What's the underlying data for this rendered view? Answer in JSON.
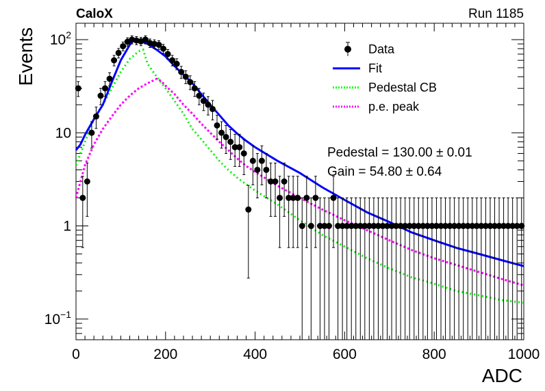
{
  "header": {
    "experiment": "CaloX",
    "run": "Run 1185"
  },
  "chart_data": {
    "type": "scatter",
    "xlabel": "ADC",
    "ylabel": "Events",
    "xlim": [
      0,
      1000
    ],
    "ylim": [
      0.06,
      150
    ],
    "yscale": "log",
    "x_ticks": [
      "0",
      "200",
      "400",
      "600",
      "800",
      "1000"
    ],
    "y_ticks": [
      {
        "value": 0.1,
        "base": "10",
        "exp": "−1"
      },
      {
        "value": 1,
        "label": "1"
      },
      {
        "value": 10,
        "label": "10"
      },
      {
        "value": 100,
        "base": "10",
        "exp": "2"
      }
    ],
    "legend": {
      "position": "top-right",
      "entries": [
        {
          "label": "Data",
          "style": "marker",
          "color": "#000000"
        },
        {
          "label": "Fit",
          "style": "solid",
          "color": "#0000ff"
        },
        {
          "label": "Pedestal CB",
          "style": "dotted",
          "color": "#00ff00"
        },
        {
          "label": "p.e. peak",
          "style": "dotted",
          "color": "#ff00ff"
        }
      ]
    },
    "annotations": [
      "Pedestal = 130.00 ± 0.01",
      "Gain = 54.80 ± 0.64"
    ],
    "series": [
      {
        "name": "Data",
        "type": "errorbar",
        "x": [
          5,
          15,
          25,
          35,
          45,
          55,
          65,
          75,
          85,
          95,
          105,
          115,
          125,
          135,
          145,
          155,
          165,
          175,
          185,
          195,
          205,
          215,
          225,
          235,
          245,
          255,
          265,
          275,
          285,
          295,
          305,
          315,
          325,
          335,
          345,
          355,
          365,
          375,
          385,
          395,
          405,
          415,
          425,
          435,
          445,
          455,
          465,
          475,
          485,
          495,
          505,
          515,
          525,
          535,
          545,
          555,
          565,
          575,
          585,
          595,
          605,
          615,
          625,
          635,
          645,
          655,
          665,
          675,
          685,
          695,
          705,
          715,
          725,
          735,
          745,
          755,
          765,
          775,
          785,
          795,
          805,
          815,
          825,
          835,
          845,
          855,
          865,
          875,
          885,
          895,
          905,
          915,
          925,
          935,
          945,
          955,
          965,
          975,
          985,
          995
        ],
        "y": [
          30,
          2,
          3,
          10,
          15,
          25,
          30,
          38,
          60,
          72,
          85,
          95,
          100,
          98,
          96,
          100,
          92,
          90,
          88,
          80,
          70,
          60,
          55,
          45,
          40,
          35,
          30,
          25,
          22,
          20,
          18,
          12,
          10,
          9,
          8,
          7,
          7,
          6,
          1.5,
          5,
          4,
          5,
          4,
          3,
          3,
          2,
          3,
          2,
          2,
          2,
          1,
          2,
          1,
          2,
          1,
          1,
          1,
          2,
          1,
          1,
          1,
          1,
          1,
          1,
          1,
          1,
          1,
          1,
          1,
          1,
          1,
          1,
          1,
          1,
          1,
          1,
          1,
          1,
          1,
          1,
          1,
          1,
          1,
          1,
          1,
          1,
          1,
          1,
          1,
          1,
          1,
          1,
          1,
          1,
          1,
          1,
          1,
          1,
          1,
          1
        ]
      },
      {
        "name": "Fit",
        "type": "line",
        "x": [
          0,
          10,
          20,
          40,
          60,
          80,
          100,
          120,
          130,
          140,
          160,
          180,
          200,
          220,
          240,
          260,
          280,
          300,
          320,
          340,
          360,
          380,
          400,
          450,
          500,
          550,
          600,
          650,
          700,
          750,
          800,
          850,
          900,
          950,
          1000
        ],
        "y": [
          6.5,
          7.5,
          9.5,
          14,
          20,
          35,
          60,
          88,
          100,
          98,
          90,
          78,
          66,
          52,
          42,
          34,
          26,
          20,
          15.5,
          12,
          9.8,
          8.2,
          7.0,
          5.0,
          3.7,
          2.6,
          1.9,
          1.4,
          1.1,
          0.85,
          0.7,
          0.58,
          0.5,
          0.43,
          0.37
        ]
      },
      {
        "name": "Pedestal CB",
        "type": "line",
        "x": [
          0,
          10,
          20,
          40,
          60,
          80,
          100,
          120,
          140,
          150,
          160,
          180,
          200,
          220,
          240,
          260,
          280,
          300,
          320,
          340,
          360,
          380,
          400,
          450,
          500,
          550,
          600,
          650,
          700,
          750,
          800,
          850,
          900,
          950,
          1000
        ],
        "y": [
          4.5,
          6,
          8,
          14,
          20,
          30,
          45,
          62,
          75,
          78,
          55,
          40,
          30,
          22,
          16,
          11,
          8.5,
          6.5,
          5,
          4,
          3.3,
          2.8,
          2.4,
          1.7,
          1.15,
          0.8,
          0.6,
          0.45,
          0.35,
          0.28,
          0.24,
          0.2,
          0.18,
          0.16,
          0.15
        ]
      },
      {
        "name": "p.e. peak",
        "type": "line",
        "x": [
          0,
          10,
          20,
          40,
          60,
          80,
          100,
          120,
          140,
          160,
          180,
          190,
          200,
          220,
          240,
          260,
          280,
          300,
          320,
          340,
          360,
          380,
          400,
          450,
          500,
          550,
          600,
          650,
          700,
          750,
          800,
          850,
          900,
          950,
          1000
        ],
        "y": [
          2.0,
          3.0,
          4.5,
          7.5,
          11,
          15,
          20,
          25,
          30,
          34,
          38,
          36,
          32,
          26,
          20,
          16,
          12.5,
          10,
          8,
          6.5,
          5.3,
          4.4,
          3.8,
          2.7,
          2.0,
          1.5,
          1.15,
          0.9,
          0.7,
          0.55,
          0.45,
          0.38,
          0.32,
          0.27,
          0.23
        ]
      }
    ]
  }
}
